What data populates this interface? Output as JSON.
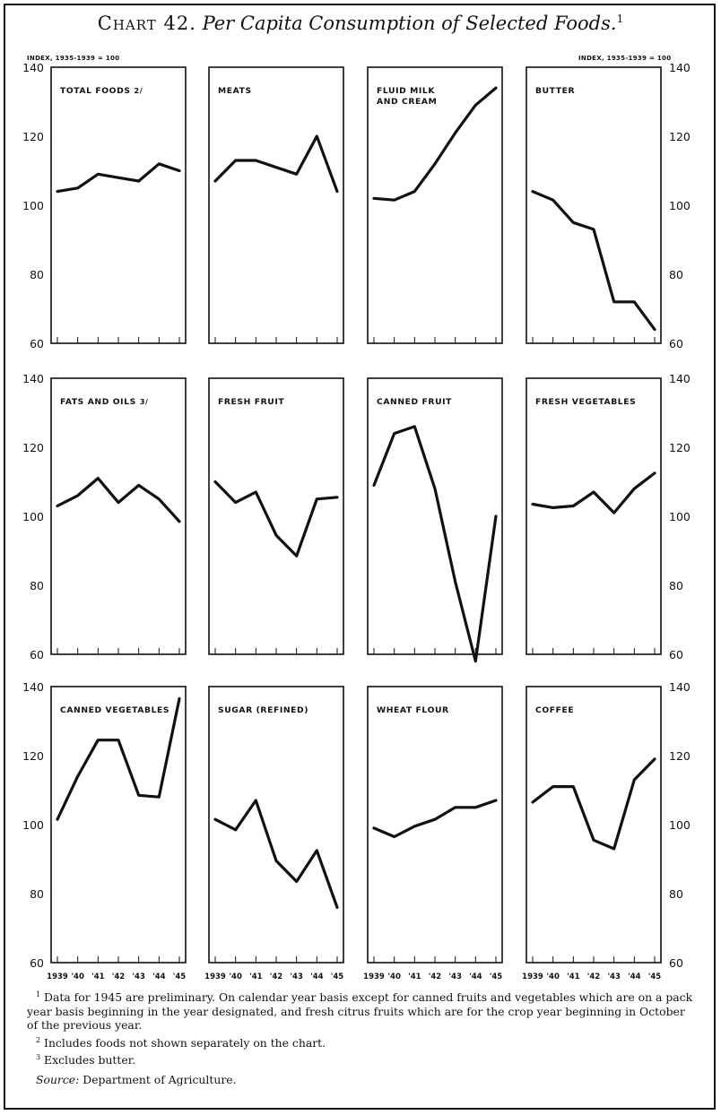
{
  "header": {
    "chart_number": "Chart 42.",
    "chart_title": "Per Capita Consumption of Selected Foods.",
    "title_footnote_mark": "1",
    "index_label_left": "INDEX, 1935-1939 = 100",
    "index_label_right": "INDEX, 1935-1939 = 100"
  },
  "footnotes": {
    "fn1_mark": "1",
    "fn1_text": "Data for 1945 are preliminary. On calendar year basis except for canned fruits and vegetables which are on a pack year basis beginning in the year designated, and fresh citrus fruits which are for the crop year beginning in October of the previous year.",
    "fn2_mark": "2",
    "fn2_text": "Includes foods not shown separately on the chart.",
    "fn3_mark": "3",
    "fn3_text": "Excludes butter.",
    "source_label": "Source:",
    "source_text": "Department of Agriculture."
  },
  "colors": {
    "line": "#111111",
    "paper": "#ffffff",
    "bleed_text": "#b5b5b5"
  },
  "chart_data": {
    "type": "line",
    "x": [
      "1939",
      "'40",
      "'41",
      "'42",
      "'43",
      "'44",
      "'45"
    ],
    "ylim": [
      60,
      140
    ],
    "yticks": [
      60,
      80,
      100,
      120,
      140
    ],
    "grid": false,
    "panels": [
      {
        "name": "TOTAL FOODS",
        "mark": "2/",
        "values": [
          104,
          105,
          109,
          108,
          107,
          112,
          110
        ]
      },
      {
        "name": "MEATS",
        "values": [
          107,
          113,
          113,
          111,
          109,
          120,
          104
        ]
      },
      {
        "name": "FLUID MILK AND CREAM",
        "values": [
          102,
          101.5,
          104,
          112,
          121,
          129,
          134
        ]
      },
      {
        "name": "BUTTER",
        "values": [
          104,
          101.5,
          95,
          93,
          72,
          72,
          64
        ]
      },
      {
        "name": "FATS AND OILS",
        "mark": "3/",
        "values": [
          103,
          106,
          111,
          104,
          109,
          105,
          98.5
        ]
      },
      {
        "name": "FRESH FRUIT",
        "values": [
          110,
          104,
          107,
          94.5,
          88.5,
          105,
          105.5
        ]
      },
      {
        "name": "CANNED FRUIT",
        "values": [
          109,
          124,
          126,
          108,
          81,
          58,
          100
        ]
      },
      {
        "name": "FRESH VEGETABLES",
        "values": [
          103.5,
          102.5,
          103,
          107,
          101,
          108,
          112.5
        ]
      },
      {
        "name": "CANNED VEGETABLES",
        "values": [
          101.5,
          114,
          124.5,
          124.5,
          108.5,
          108,
          136.5
        ]
      },
      {
        "name": "SUGAR (REFINED)",
        "values": [
          101.5,
          98.5,
          107,
          89.5,
          83.5,
          92.5,
          76
        ]
      },
      {
        "name": "WHEAT FLOUR",
        "values": [
          99,
          96.5,
          99.5,
          101.5,
          105,
          105,
          107
        ]
      },
      {
        "name": "COFFEE",
        "values": [
          106.5,
          111,
          111,
          95.5,
          93,
          113,
          119
        ]
      }
    ]
  }
}
